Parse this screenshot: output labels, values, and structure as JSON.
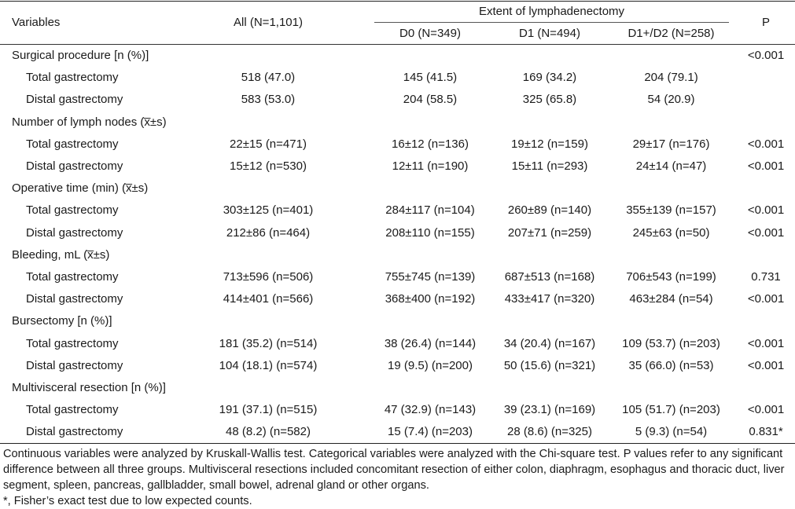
{
  "header": {
    "variables": "Variables",
    "all": "All (N=1,101)",
    "extent": "Extent of lymphadenectomy",
    "d0": "D0 (N=349)",
    "d1": "D1 (N=494)",
    "d2": "D1+/D2 (N=258)",
    "p": "P"
  },
  "rows": [
    {
      "type": "section",
      "label": "Surgical procedure [n (%)]",
      "all": "",
      "d0": "",
      "d1": "",
      "d2": "",
      "p": "<0.001"
    },
    {
      "type": "sub",
      "label": "Total gastrectomy",
      "all": "518 (47.0)",
      "d0": "145 (41.5)",
      "d1": "169 (34.2)",
      "d2": "204 (79.1)",
      "p": ""
    },
    {
      "type": "sub",
      "label": "Distal gastrectomy",
      "all": "583 (53.0)",
      "d0": "204 (58.5)",
      "d1": "325 (65.8)",
      "d2": "54 (20.9)",
      "p": ""
    },
    {
      "type": "section",
      "label": "Number of lymph nodes (x̅±s)",
      "all": "",
      "d0": "",
      "d1": "",
      "d2": "",
      "p": ""
    },
    {
      "type": "sub",
      "label": "Total gastrectomy",
      "all": "22±15 (n=471)",
      "d0": "16±12 (n=136)",
      "d1": "19±12 (n=159)",
      "d2": "29±17 (n=176)",
      "p": "<0.001"
    },
    {
      "type": "sub",
      "label": "Distal gastrectomy",
      "all": "15±12 (n=530)",
      "d0": "12±11 (n=190)",
      "d1": "15±11 (n=293)",
      "d2": "24±14 (n=47)",
      "p": "<0.001"
    },
    {
      "type": "section",
      "label": "Operative time (min) (x̅±s)",
      "all": "",
      "d0": "",
      "d1": "",
      "d2": "",
      "p": ""
    },
    {
      "type": "sub",
      "label": "Total gastrectomy",
      "all": "303±125 (n=401)",
      "d0": "284±117 (n=104)",
      "d1": "260±89 (n=140)",
      "d2": "355±139 (n=157)",
      "p": "<0.001"
    },
    {
      "type": "sub",
      "label": "Distal gastrectomy",
      "all": "212±86 (n=464)",
      "d0": "208±110 (n=155)",
      "d1": "207±71 (n=259)",
      "d2": "245±63 (n=50)",
      "p": "<0.001"
    },
    {
      "type": "section",
      "label": "Bleeding, mL (x̅±s)",
      "all": "",
      "d0": "",
      "d1": "",
      "d2": "",
      "p": ""
    },
    {
      "type": "sub",
      "label": "Total gastrectomy",
      "all": "713±596 (n=506)",
      "d0": "755±745 (n=139)",
      "d1": "687±513 (n=168)",
      "d2": "706±543 (n=199)",
      "p": "0.731"
    },
    {
      "type": "sub",
      "label": "Distal gastrectomy",
      "all": "414±401 (n=566)",
      "d0": "368±400 (n=192)",
      "d1": "433±417 (n=320)",
      "d2": "463±284 (n=54)",
      "p": "<0.001"
    },
    {
      "type": "section",
      "label": "Bursectomy [n (%)]",
      "all": "",
      "d0": "",
      "d1": "",
      "d2": "",
      "p": ""
    },
    {
      "type": "sub",
      "label": "Total gastrectomy",
      "all": "181 (35.2) (n=514)",
      "d0": "38 (26.4) (n=144)",
      "d1": "34 (20.4) (n=167)",
      "d2": "109 (53.7) (n=203)",
      "p": "<0.001"
    },
    {
      "type": "sub",
      "label": "Distal gastrectomy",
      "all": "104 (18.1) (n=574)",
      "d0": "19 (9.5) (n=200)",
      "d1": "50 (15.6) (n=321)",
      "d2": "35 (66.0) (n=53)",
      "p": "<0.001"
    },
    {
      "type": "section",
      "label": "Multivisceral resection [n (%)]",
      "all": "",
      "d0": "",
      "d1": "",
      "d2": "",
      "p": ""
    },
    {
      "type": "sub",
      "label": "Total gastrectomy",
      "all": "191 (37.1) (n=515)",
      "d0": "47 (32.9) (n=143)",
      "d1": "39 (23.1) (n=169)",
      "d2": "105 (51.7) (n=203)",
      "p": "<0.001"
    },
    {
      "type": "sub",
      "label": "Distal gastrectomy",
      "all": "48 (8.2) (n=582)",
      "d0": "15 (7.4) (n=203)",
      "d1": "28 (8.6) (n=325)",
      "d2": "5 (9.3) (n=54)",
      "p": "0.831*"
    }
  ],
  "footnotes": [
    "Continuous variables were analyzed by Kruskall-Wallis test. Categorical variables were analyzed with the Chi-square test. P values refer to any significant difference between all three groups. Multivisceral resections included concomitant resection of either colon, diaphragm, esophagus and thoracic duct, liver segment, spleen, pancreas, gallbladder, small bowel, adrenal gland or other organs.",
    "*, Fisher’s exact test due to low expected counts."
  ]
}
